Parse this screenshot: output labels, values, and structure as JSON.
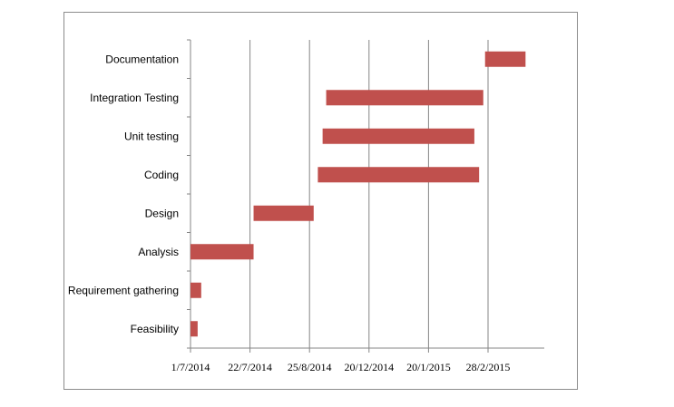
{
  "chart_data": {
    "type": "bar",
    "orientation": "horizontal",
    "title": "",
    "xlabel": "",
    "ylabel": "",
    "grid": true,
    "legend": "none",
    "bar_color": "#c0504d",
    "categories": [
      "Feasibility",
      "Requirement gathering",
      "Analysis",
      "Design",
      "Coding",
      "Unit testing",
      "Integration Testing",
      "Documentation"
    ],
    "x_tick_labels": [
      "1/7/2014",
      "22/7/2014",
      "25/8/2014",
      "20/12/2014",
      "20/1/2015",
      "28/2/2015"
    ],
    "x_tick_positions": [
      0,
      1,
      2,
      3,
      4,
      5
    ],
    "xlim": [
      0,
      6
    ],
    "tasks": [
      {
        "name": "Feasibility",
        "start": 0.0,
        "end": 0.12
      },
      {
        "name": "Requirement gathering",
        "start": 0.0,
        "end": 0.18
      },
      {
        "name": "Analysis",
        "start": 0.0,
        "end": 1.06
      },
      {
        "name": "Design",
        "start": 1.06,
        "end": 2.07
      },
      {
        "name": "Coding",
        "start": 2.14,
        "end": 4.85
      },
      {
        "name": "Unit testing",
        "start": 2.22,
        "end": 4.77
      },
      {
        "name": "Integration Testing",
        "start": 2.28,
        "end": 4.92
      },
      {
        "name": "Documentation",
        "start": 4.95,
        "end": 5.63
      }
    ]
  }
}
